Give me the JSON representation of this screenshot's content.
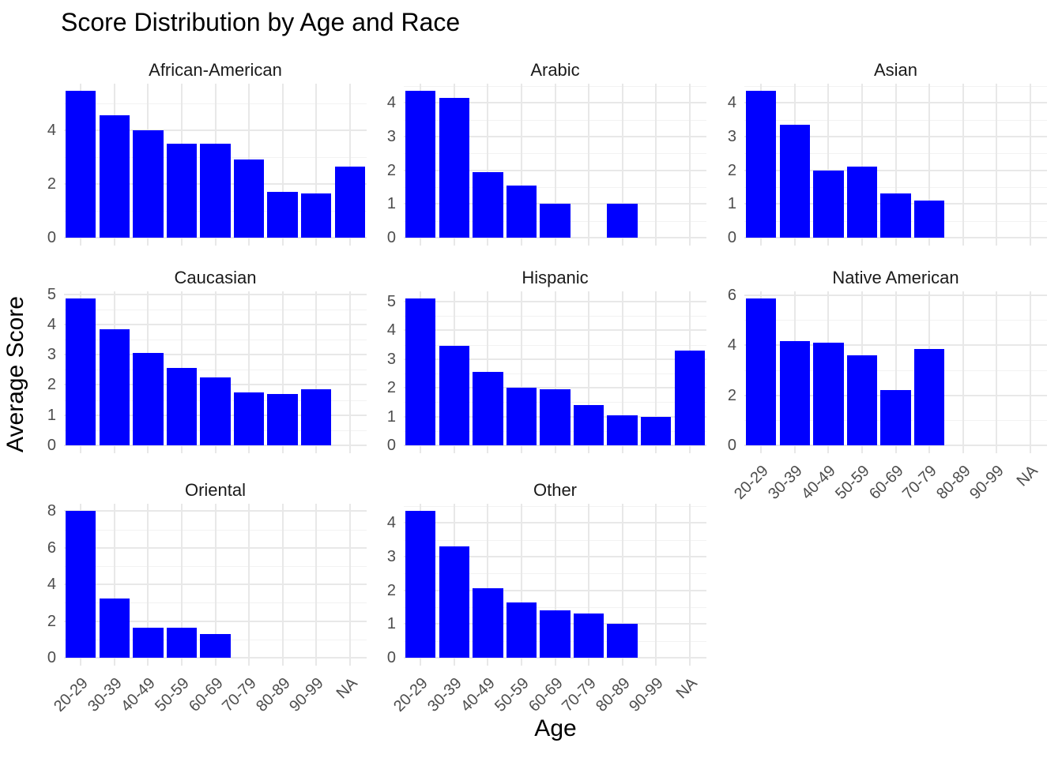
{
  "title": "Score Distribution by Age and Race",
  "axes": {
    "x_title": "Age",
    "y_title": "Average Score"
  },
  "colors": {
    "bar_fill": "#0000ff",
    "grid_major": "#e8e8e8",
    "grid_minor": "#f2f2f2",
    "axis_text": "#4d4d4d",
    "strip_text": "#1a1a1a",
    "title_text": "#000000",
    "background": "#ffffff"
  },
  "chart_data": {
    "type": "bar",
    "title": "Score Distribution by Age and Race",
    "xlabel": "Age",
    "ylabel": "Average Score",
    "grid": true,
    "legend": false,
    "faceted_by": "Race",
    "free_y_scales": true,
    "categories": [
      "20-29",
      "30-39",
      "40-49",
      "50-59",
      "60-69",
      "70-79",
      "80-89",
      "90-99",
      "NA"
    ],
    "facets": [
      {
        "name": "African-American",
        "yticks": [
          0,
          2,
          4
        ],
        "values": [
          5.45,
          4.55,
          4.0,
          3.5,
          3.5,
          2.9,
          1.7,
          1.65,
          2.65
        ]
      },
      {
        "name": "Arabic",
        "yticks": [
          0,
          1,
          2,
          3,
          4
        ],
        "values": [
          4.35,
          4.15,
          1.95,
          1.55,
          1.0,
          null,
          1.0,
          null,
          null
        ]
      },
      {
        "name": "Asian",
        "yticks": [
          0,
          1,
          2,
          3,
          4
        ],
        "values": [
          4.35,
          3.35,
          2.0,
          2.1,
          1.3,
          1.1,
          null,
          null,
          null
        ]
      },
      {
        "name": "Caucasian",
        "yticks": [
          0,
          1,
          2,
          3,
          4,
          5
        ],
        "values": [
          4.85,
          3.85,
          3.05,
          2.55,
          2.25,
          1.75,
          1.7,
          1.85,
          null
        ]
      },
      {
        "name": "Hispanic",
        "yticks": [
          0,
          1,
          2,
          3,
          4,
          5
        ],
        "values": [
          5.1,
          3.45,
          2.55,
          2.0,
          1.95,
          1.4,
          1.05,
          1.0,
          3.3
        ]
      },
      {
        "name": "Native American",
        "yticks": [
          0,
          2,
          4,
          6
        ],
        "values": [
          5.85,
          4.15,
          4.1,
          3.6,
          2.2,
          3.85,
          null,
          null,
          null
        ]
      },
      {
        "name": "Oriental",
        "yticks": [
          0,
          2,
          4,
          6,
          8
        ],
        "values": [
          8.0,
          3.25,
          1.65,
          1.65,
          1.3,
          null,
          null,
          null,
          null
        ]
      },
      {
        "name": "Other",
        "yticks": [
          0,
          1,
          2,
          3,
          4
        ],
        "values": [
          4.35,
          3.3,
          2.05,
          1.65,
          1.4,
          1.3,
          1.0,
          null,
          null
        ]
      }
    ]
  }
}
